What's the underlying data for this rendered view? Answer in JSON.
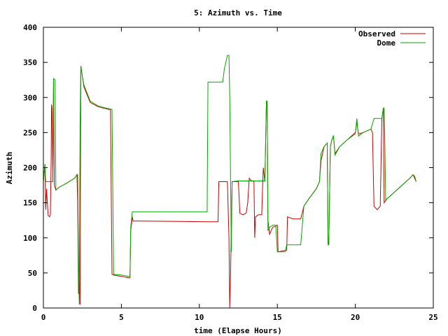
{
  "chart_data": {
    "type": "line",
    "title": "5: Azimuth vs. Time",
    "xlabel": "time (Elapse Hours)",
    "ylabel": "Azimuth",
    "xlim": [
      0,
      25
    ],
    "ylim": [
      0,
      400
    ],
    "xticks": [
      0,
      5,
      10,
      15,
      20,
      25
    ],
    "yticks": [
      0,
      50,
      100,
      150,
      200,
      250,
      300,
      350,
      400
    ],
    "grid": false,
    "legend_position": "top-right",
    "series": [
      {
        "name": "Observed",
        "color": "#cc0000",
        "points": [
          [
            0,
            180
          ],
          [
            0.1,
            205
          ],
          [
            0.15,
            140
          ],
          [
            0.2,
            170
          ],
          [
            0.3,
            132
          ],
          [
            0.4,
            130
          ],
          [
            0.45,
            133
          ],
          [
            0.5,
            215
          ],
          [
            0.52,
            290
          ],
          [
            0.55,
            285
          ],
          [
            0.6,
            180
          ],
          [
            0.65,
            325
          ],
          [
            0.7,
            175
          ],
          [
            0.8,
            168
          ],
          [
            1.0,
            172
          ],
          [
            1.5,
            178
          ],
          [
            2.0,
            185
          ],
          [
            2.15,
            190
          ],
          [
            2.2,
            150
          ],
          [
            2.25,
            20
          ],
          [
            2.3,
            40
          ],
          [
            2.35,
            5
          ],
          [
            2.4,
            345
          ],
          [
            2.5,
            330
          ],
          [
            2.6,
            315
          ],
          [
            3.0,
            293
          ],
          [
            3.5,
            287
          ],
          [
            4.0,
            284
          ],
          [
            4.2,
            283
          ],
          [
            4.3,
            283
          ],
          [
            4.4,
            48
          ],
          [
            4.5,
            47
          ],
          [
            5.0,
            45
          ],
          [
            5.5,
            43
          ],
          [
            5.55,
            43
          ],
          [
            5.6,
            110
          ],
          [
            5.7,
            130
          ],
          [
            5.75,
            124
          ],
          [
            6.0,
            124
          ],
          [
            10.5,
            123
          ],
          [
            11.0,
            123
          ],
          [
            11.2,
            123
          ],
          [
            11.25,
            180
          ],
          [
            11.5,
            180
          ],
          [
            11.8,
            180
          ],
          [
            11.9,
            100
          ],
          [
            11.95,
            0
          ],
          [
            12.0,
            50
          ],
          [
            12.1,
            180
          ],
          [
            12.3,
            180
          ],
          [
            12.5,
            180
          ],
          [
            12.6,
            135
          ],
          [
            12.8,
            133
          ],
          [
            13.0,
            135
          ],
          [
            13.1,
            150
          ],
          [
            13.2,
            185
          ],
          [
            13.3,
            182
          ],
          [
            13.5,
            180
          ],
          [
            13.55,
            100
          ],
          [
            13.6,
            130
          ],
          [
            13.8,
            133
          ],
          [
            14.0,
            133
          ],
          [
            14.1,
            200
          ],
          [
            14.2,
            180
          ],
          [
            14.3,
            295
          ],
          [
            14.35,
            290
          ],
          [
            14.4,
            125
          ],
          [
            14.5,
            105
          ],
          [
            14.7,
            115
          ],
          [
            15.0,
            118
          ],
          [
            15.05,
            80
          ],
          [
            15.5,
            82
          ],
          [
            15.6,
            82
          ],
          [
            15.65,
            130
          ],
          [
            16.0,
            127
          ],
          [
            16.5,
            127
          ],
          [
            16.7,
            145
          ],
          [
            17.0,
            155
          ],
          [
            17.5,
            170
          ],
          [
            17.7,
            180
          ],
          [
            17.8,
            210
          ],
          [
            18.0,
            230
          ],
          [
            18.2,
            235
          ],
          [
            18.25,
            95
          ],
          [
            18.3,
            90
          ],
          [
            18.4,
            230
          ],
          [
            18.5,
            240
          ],
          [
            18.6,
            245
          ],
          [
            18.7,
            220
          ],
          [
            19.0,
            230
          ],
          [
            19.5,
            240
          ],
          [
            20.0,
            250
          ],
          [
            20.1,
            265
          ],
          [
            20.2,
            248
          ],
          [
            20.5,
            250
          ],
          [
            21.0,
            255
          ],
          [
            21.1,
            250
          ],
          [
            21.2,
            145
          ],
          [
            21.4,
            140
          ],
          [
            21.6,
            145
          ],
          [
            21.7,
            270
          ],
          [
            21.8,
            285
          ],
          [
            21.85,
            150
          ],
          [
            22.0,
            155
          ],
          [
            22.5,
            165
          ],
          [
            23.0,
            175
          ],
          [
            23.5,
            185
          ],
          [
            23.7,
            190
          ],
          [
            23.8,
            185
          ],
          [
            23.9,
            180
          ]
        ]
      },
      {
        "name": "Dome",
        "color": "#00aa00",
        "points": [
          [
            0,
            180
          ],
          [
            0.1,
            205
          ],
          [
            0.15,
            180
          ],
          [
            0.6,
            180
          ],
          [
            0.65,
            327
          ],
          [
            0.75,
            325
          ],
          [
            0.8,
            168
          ],
          [
            1.0,
            172
          ],
          [
            1.5,
            178
          ],
          [
            2.0,
            185
          ],
          [
            2.15,
            190
          ],
          [
            2.2,
            190
          ],
          [
            2.25,
            80
          ],
          [
            2.3,
            5
          ],
          [
            2.35,
            260
          ],
          [
            2.4,
            345
          ],
          [
            2.5,
            330
          ],
          [
            2.6,
            318
          ],
          [
            3.0,
            295
          ],
          [
            3.5,
            288
          ],
          [
            4.0,
            285
          ],
          [
            4.4,
            283
          ],
          [
            4.5,
            48
          ],
          [
            5.0,
            47
          ],
          [
            5.5,
            45
          ],
          [
            5.55,
            45
          ],
          [
            5.6,
            115
          ],
          [
            5.7,
            137
          ],
          [
            6.0,
            137
          ],
          [
            10.5,
            137
          ],
          [
            10.55,
            322
          ],
          [
            11.0,
            322
          ],
          [
            11.5,
            322
          ],
          [
            11.6,
            340
          ],
          [
            11.8,
            360
          ],
          [
            11.9,
            360
          ],
          [
            11.95,
            300
          ],
          [
            12.0,
            180
          ],
          [
            12.05,
            80
          ],
          [
            12.1,
            180
          ],
          [
            12.5,
            181
          ],
          [
            13.0,
            181
          ],
          [
            13.5,
            181
          ],
          [
            14.0,
            181
          ],
          [
            14.2,
            181
          ],
          [
            14.3,
            295
          ],
          [
            14.35,
            295
          ],
          [
            14.4,
            110
          ],
          [
            14.5,
            115
          ],
          [
            14.7,
            118
          ],
          [
            14.9,
            118
          ],
          [
            15.0,
            80
          ],
          [
            15.5,
            80
          ],
          [
            15.6,
            90
          ],
          [
            16.0,
            90
          ],
          [
            16.5,
            90
          ],
          [
            16.7,
            145
          ],
          [
            17.0,
            155
          ],
          [
            17.5,
            170
          ],
          [
            17.7,
            180
          ],
          [
            17.8,
            220
          ],
          [
            18.0,
            230
          ],
          [
            18.2,
            235
          ],
          [
            18.25,
            90
          ],
          [
            18.3,
            90
          ],
          [
            18.4,
            230
          ],
          [
            18.5,
            240
          ],
          [
            18.6,
            246
          ],
          [
            18.7,
            218
          ],
          [
            19.0,
            230
          ],
          [
            19.5,
            240
          ],
          [
            20.0,
            248
          ],
          [
            20.1,
            270
          ],
          [
            20.2,
            245
          ],
          [
            20.5,
            250
          ],
          [
            21.0,
            255
          ],
          [
            21.2,
            270
          ],
          [
            21.4,
            270
          ],
          [
            21.6,
            270
          ],
          [
            21.7,
            270
          ],
          [
            21.8,
            285
          ],
          [
            21.85,
            285
          ],
          [
            21.9,
            230
          ],
          [
            21.95,
            152
          ],
          [
            22.0,
            155
          ],
          [
            22.5,
            165
          ],
          [
            23.0,
            175
          ],
          [
            23.5,
            185
          ],
          [
            23.7,
            190
          ],
          [
            23.8,
            188
          ],
          [
            23.9,
            180
          ]
        ]
      }
    ]
  }
}
